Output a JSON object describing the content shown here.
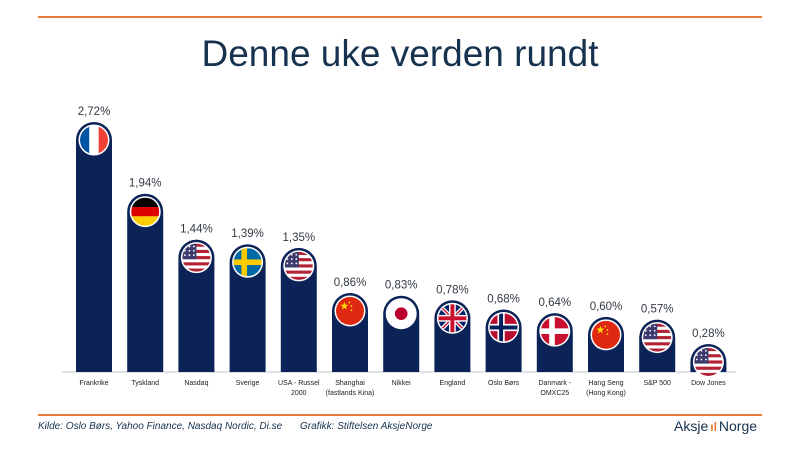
{
  "title": "Denne uke verden rundt",
  "footer": {
    "source": "Kilde: Oslo Børs, Yahoo Finance, Nasdaq Nordic, Di.se",
    "credit": "Grafikk: Stiftelsen AksjeNorge",
    "logo_left": "Aksje",
    "logo_right": "Norge"
  },
  "colors": {
    "bar": "#0c2357",
    "accent": "#e97a3a",
    "text": "#16324f"
  },
  "chart_data": {
    "type": "bar",
    "title": "Denne uke verden rundt",
    "xlabel": "",
    "ylabel": "",
    "ylim": [
      0,
      2.72
    ],
    "grid": false,
    "categories": [
      {
        "label": [
          "Frankrike"
        ],
        "value": 2.72,
        "value_label": "2,72%",
        "flag": "france-flag-icon"
      },
      {
        "label": [
          "Tyskland"
        ],
        "value": 1.94,
        "value_label": "1,94%",
        "flag": "germany-flag-icon"
      },
      {
        "label": [
          "Nasdaq"
        ],
        "value": 1.44,
        "value_label": "1,44%",
        "flag": "usa-flag-icon"
      },
      {
        "label": [
          "Sverige"
        ],
        "value": 1.39,
        "value_label": "1,39%",
        "flag": "sweden-flag-icon"
      },
      {
        "label": [
          "USA - Russel",
          "2000"
        ],
        "value": 1.35,
        "value_label": "1,35%",
        "flag": "usa-flag-icon"
      },
      {
        "label": [
          "Shanghai",
          "(fastlands Kina)"
        ],
        "value": 0.86,
        "value_label": "0,86%",
        "flag": "china-flag-icon"
      },
      {
        "label": [
          "Nikkei"
        ],
        "value": 0.83,
        "value_label": "0,83%",
        "flag": "japan-flag-icon"
      },
      {
        "label": [
          "England"
        ],
        "value": 0.78,
        "value_label": "0,78%",
        "flag": "uk-flag-icon"
      },
      {
        "label": [
          "Oslo Børs"
        ],
        "value": 0.68,
        "value_label": "0,68%",
        "flag": "norway-flag-icon"
      },
      {
        "label": [
          "Danmark -",
          "OMXC25"
        ],
        "value": 0.64,
        "value_label": "0,64%",
        "flag": "denmark-flag-icon"
      },
      {
        "label": [
          "Hang Seng",
          "(Hong Kong)"
        ],
        "value": 0.6,
        "value_label": "0,60%",
        "flag": "china-flag-icon"
      },
      {
        "label": [
          "S&P 500"
        ],
        "value": 0.57,
        "value_label": "0,57%",
        "flag": "usa-flag-icon"
      },
      {
        "label": [
          "Dow Jones"
        ],
        "value": 0.28,
        "value_label": "0,28%",
        "flag": "usa-flag-icon"
      }
    ]
  }
}
